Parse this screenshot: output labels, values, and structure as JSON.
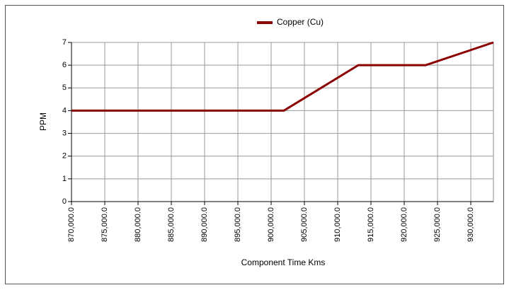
{
  "chart_data": {
    "type": "line",
    "xlabel": "Component Time Kms",
    "ylabel": "PPM",
    "x": [
      870000,
      901900,
      913100,
      923200,
      933400
    ],
    "series": [
      {
        "name": "Copper (Cu)",
        "color": "#8b0000",
        "values": [
          4,
          4,
          6,
          6,
          7
        ]
      }
    ],
    "xlim": [
      870000,
      933400
    ],
    "xticks": [
      {
        "value": 870000,
        "label": "870,000.0"
      },
      {
        "value": 875000,
        "label": "875,000.0"
      },
      {
        "value": 880000,
        "label": "880,000.0"
      },
      {
        "value": 885000,
        "label": "885,000.0"
      },
      {
        "value": 890000,
        "label": "890,000.0"
      },
      {
        "value": 895000,
        "label": "895,000.0"
      },
      {
        "value": 900000,
        "label": "900,000.0"
      },
      {
        "value": 905000,
        "label": "905,000.0"
      },
      {
        "value": 910000,
        "label": "910,000.0"
      },
      {
        "value": 915000,
        "label": "915,000.0"
      },
      {
        "value": 920000,
        "label": "920,000.0"
      },
      {
        "value": 925000,
        "label": "925,000.0"
      },
      {
        "value": 930000,
        "label": "930,000.0"
      }
    ],
    "ylim": [
      0,
      7
    ],
    "yticks": [
      0,
      1,
      2,
      3,
      4,
      5,
      6,
      7
    ],
    "grid": true,
    "legend": "top"
  }
}
